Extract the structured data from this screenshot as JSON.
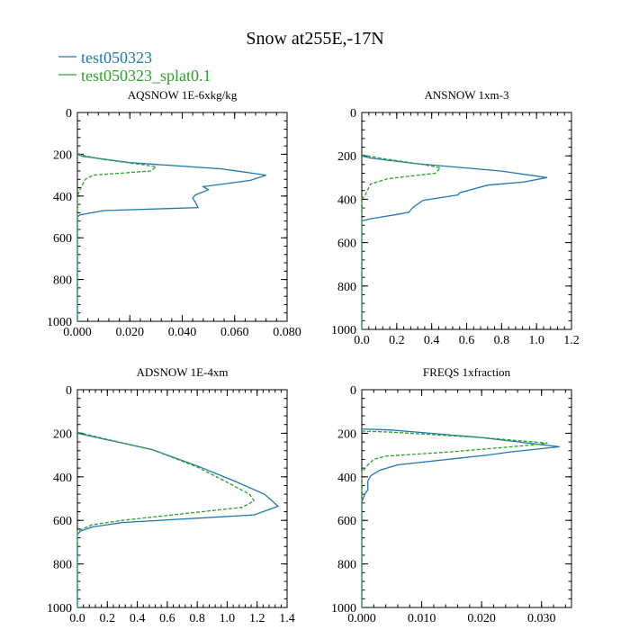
{
  "figure_title": "Snow at255E,-17N",
  "legend": [
    {
      "label": "test050323",
      "color": "#1f77b4",
      "style": "solid"
    },
    {
      "label": "test050323_splat0.1",
      "color": "#2ca02c",
      "style": "dashed"
    }
  ],
  "chart_data": [
    {
      "type": "line",
      "title": "AQSNOW  1E-6xkg/kg",
      "xlim": [
        0,
        0.08
      ],
      "ylim": [
        1000,
        0
      ],
      "xticks": [
        "0.000",
        "0.020",
        "0.040",
        "0.060",
        "0.080"
      ],
      "xtick_values": [
        0,
        0.02,
        0.04,
        0.06,
        0.08
      ],
      "yticks": [
        "0",
        "200",
        "400",
        "600",
        "800",
        "1000"
      ],
      "ytick_values": [
        0,
        200,
        400,
        600,
        800,
        1000
      ],
      "series": [
        {
          "name": "test050323",
          "x": [
            0,
            0.002,
            0.02,
            0.055,
            0.072,
            0.066,
            0.048,
            0.05,
            0.045,
            0.044,
            0.045,
            0.046,
            0.035,
            0.01,
            0.001,
            0,
            0
          ],
          "y": [
            200,
            210,
            240,
            270,
            300,
            325,
            355,
            370,
            395,
            410,
            430,
            455,
            460,
            470,
            490,
            500,
            1000
          ]
        },
        {
          "name": "test050323_splat0.1",
          "x": [
            0,
            0.002,
            0.01,
            0.025,
            0.03,
            0.028,
            0.006,
            0.003,
            0.001,
            0,
            0
          ],
          "y": [
            195,
            205,
            225,
            250,
            260,
            280,
            300,
            320,
            370,
            400,
            1000
          ]
        }
      ]
    },
    {
      "type": "line",
      "title": "ANSNOW  1xm-3",
      "xlim": [
        0,
        1.2
      ],
      "ylim": [
        1000,
        0
      ],
      "xticks": [
        "0.0",
        "0.2",
        "0.4",
        "0.6",
        "0.8",
        "1.0",
        "1.2"
      ],
      "xtick_values": [
        0,
        0.2,
        0.4,
        0.6,
        0.8,
        1.0,
        1.2
      ],
      "yticks": [
        "0",
        "200",
        "400",
        "600",
        "800",
        "1000"
      ],
      "ytick_values": [
        0,
        200,
        400,
        600,
        800,
        1000
      ],
      "series": [
        {
          "name": "test050323",
          "x": [
            0,
            0.05,
            0.3,
            0.8,
            1.06,
            0.93,
            0.72,
            0.56,
            0.55,
            0.35,
            0.29,
            0.27,
            0.2,
            0.05,
            0,
            0
          ],
          "y": [
            200,
            210,
            235,
            270,
            300,
            320,
            335,
            370,
            380,
            405,
            440,
            460,
            470,
            490,
            500,
            1000
          ]
        },
        {
          "name": "test050323_splat0.1",
          "x": [
            0,
            0.1,
            0.35,
            0.45,
            0.42,
            0.15,
            0.05,
            0.02,
            0,
            0
          ],
          "y": [
            195,
            210,
            240,
            255,
            280,
            305,
            330,
            380,
            400,
            1000
          ]
        }
      ]
    },
    {
      "type": "line",
      "title": "ADSNOW  1E-4xm",
      "xlim": [
        0,
        1.4
      ],
      "ylim": [
        1000,
        0
      ],
      "xticks": [
        "0.0",
        "0.2",
        "0.4",
        "0.6",
        "0.8",
        "1.0",
        "1.2",
        "1.4"
      ],
      "xtick_values": [
        0,
        0.2,
        0.4,
        0.6,
        0.8,
        1.0,
        1.2,
        1.4
      ],
      "yticks": [
        "0",
        "200",
        "400",
        "600",
        "800",
        "1000"
      ],
      "ytick_values": [
        0,
        200,
        400,
        600,
        800,
        1000
      ],
      "series": [
        {
          "name": "test050323",
          "x": [
            0,
            0.2,
            0.5,
            0.8,
            1.05,
            1.25,
            1.34,
            1.18,
            0.3,
            0.1,
            0.02,
            0,
            0
          ],
          "y": [
            200,
            230,
            275,
            350,
            420,
            480,
            535,
            575,
            610,
            630,
            650,
            665,
            1000
          ]
        },
        {
          "name": "test050323_splat0.1",
          "x": [
            0,
            0.2,
            0.5,
            0.8,
            1.0,
            1.15,
            1.18,
            1.1,
            0.3,
            0.1,
            0.03,
            0,
            0
          ],
          "y": [
            195,
            228,
            275,
            355,
            425,
            480,
            510,
            540,
            600,
            620,
            640,
            650,
            1000
          ]
        }
      ]
    },
    {
      "type": "line",
      "title": "FREQS  1xfraction",
      "xlim": [
        0,
        0.035
      ],
      "ylim": [
        1000,
        0
      ],
      "xticks": [
        "0.000",
        "0.010",
        "0.020",
        "0.030"
      ],
      "xtick_values": [
        0,
        0.01,
        0.02,
        0.03
      ],
      "yticks": [
        "0",
        "200",
        "400",
        "600",
        "800",
        "1000"
      ],
      "ytick_values": [
        0,
        200,
        400,
        600,
        800,
        1000
      ],
      "series": [
        {
          "name": "test050323",
          "x": [
            0,
            0.005,
            0.02,
            0.033,
            0.025,
            0.021,
            0.006,
            0.003,
            0.0015,
            0.001,
            0.001,
            0.0005,
            0,
            0
          ],
          "y": [
            180,
            185,
            220,
            262,
            285,
            300,
            345,
            370,
            395,
            420,
            460,
            480,
            515,
            1000
          ]
        },
        {
          "name": "test050323_splat0.1",
          "x": [
            0,
            0.005,
            0.02,
            0.031,
            0.028,
            0.015,
            0.004,
            0.002,
            0.001,
            0,
            0
          ],
          "y": [
            190,
            195,
            220,
            245,
            255,
            285,
            305,
            320,
            345,
            380,
            1000
          ]
        }
      ]
    }
  ]
}
